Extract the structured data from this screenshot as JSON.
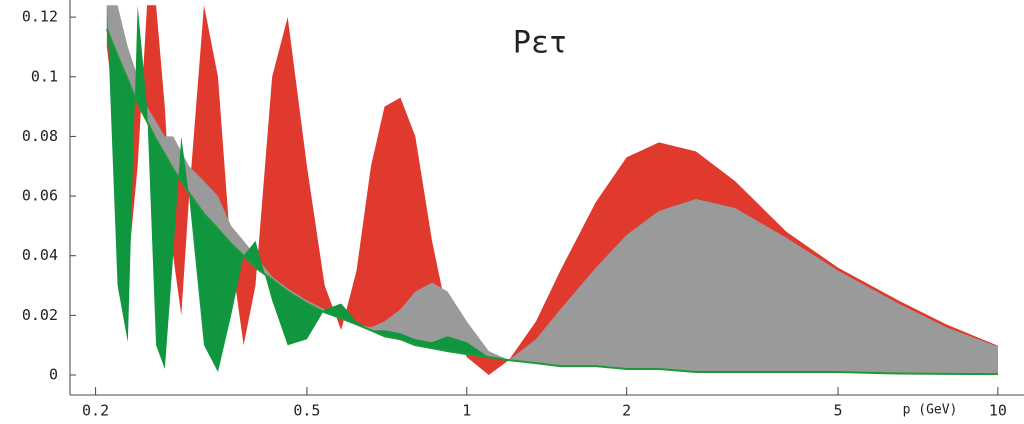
{
  "chart_data": {
    "type": "band",
    "title": "Pετ",
    "x_label": "p (GeV)",
    "xscale": "log",
    "xlim": [
      0.179,
      11.2
    ],
    "xticks": [
      0.2,
      0.5,
      1,
      2,
      5,
      10
    ],
    "ylim": [
      -0.0067,
      0.1244
    ],
    "yticks": [
      0,
      0.02,
      0.04,
      0.06,
      0.08,
      0.1,
      0.12
    ],
    "x": [
      0.21,
      0.22,
      0.23,
      0.24,
      0.25,
      0.26,
      0.27,
      0.28,
      0.29,
      0.3,
      0.32,
      0.34,
      0.36,
      0.38,
      0.4,
      0.43,
      0.46,
      0.5,
      0.54,
      0.58,
      0.62,
      0.66,
      0.7,
      0.75,
      0.8,
      0.86,
      0.92,
      1.0,
      1.1,
      1.2,
      1.35,
      1.5,
      1.75,
      2.0,
      2.3,
      2.7,
      3.2,
      4,
      5,
      6.5,
      8,
      10
    ],
    "envelope": {
      "color": "#1a9a3a",
      "values": [
        0.116,
        0.107,
        0.099,
        0.091,
        0.085,
        0.079,
        0.074,
        0.069,
        0.065,
        0.061,
        0.054,
        0.049,
        0.044,
        0.04,
        0.036,
        0.032,
        0.028,
        0.024,
        0.021,
        0.019,
        0.017,
        0.015,
        0.013,
        0.012,
        0.01,
        0.009,
        0.008,
        0.007,
        0.006,
        0.005,
        0.004,
        0.003,
        0.003,
        0.002,
        0.002,
        0.001,
        0.001,
        0.001,
        0.001,
        0.0005,
        0.0004,
        0.0003
      ]
    },
    "series": [
      {
        "color": "#e03a2e",
        "values": [
          0.11,
          0.08,
          0.035,
          0.07,
          0.124,
          0.124,
          0.09,
          0.04,
          0.02,
          0.06,
          0.124,
          0.1,
          0.04,
          0.01,
          0.03,
          0.1,
          0.12,
          0.07,
          0.03,
          0.015,
          0.035,
          0.07,
          0.09,
          0.093,
          0.08,
          0.045,
          0.02,
          0.006,
          0.0,
          0.005,
          0.018,
          0.035,
          0.058,
          0.073,
          0.078,
          0.075,
          0.065,
          0.048,
          0.036,
          0.025,
          0.017,
          0.0098
        ]
      },
      {
        "color": "#9a9a9a",
        "values": [
          0.124,
          0.124,
          0.11,
          0.1,
          0.09,
          0.085,
          0.08,
          0.08,
          0.075,
          0.07,
          0.065,
          0.06,
          0.05,
          0.045,
          0.04,
          0.033,
          0.029,
          0.025,
          0.022,
          0.019,
          0.017,
          0.016,
          0.018,
          0.022,
          0.028,
          0.031,
          0.028,
          0.018,
          0.008,
          0.005,
          0.012,
          0.022,
          0.036,
          0.047,
          0.055,
          0.059,
          0.056,
          0.046,
          0.035,
          0.024,
          0.016,
          0.0095
        ]
      },
      {
        "color": "#119640",
        "values": [
          0.124,
          0.03,
          0.011,
          0.124,
          0.09,
          0.01,
          0.002,
          0.04,
          0.08,
          0.06,
          0.01,
          0.001,
          0.02,
          0.04,
          0.045,
          0.025,
          0.01,
          0.012,
          0.022,
          0.024,
          0.018,
          0.015,
          0.015,
          0.014,
          0.012,
          0.011,
          0.013,
          0.011,
          0.006,
          0.005,
          0.004,
          0.003,
          0.003,
          0.002,
          0.002,
          0.001,
          0.001,
          0.001,
          0.001,
          0.0005,
          0.0004,
          0.0003
        ]
      }
    ]
  }
}
